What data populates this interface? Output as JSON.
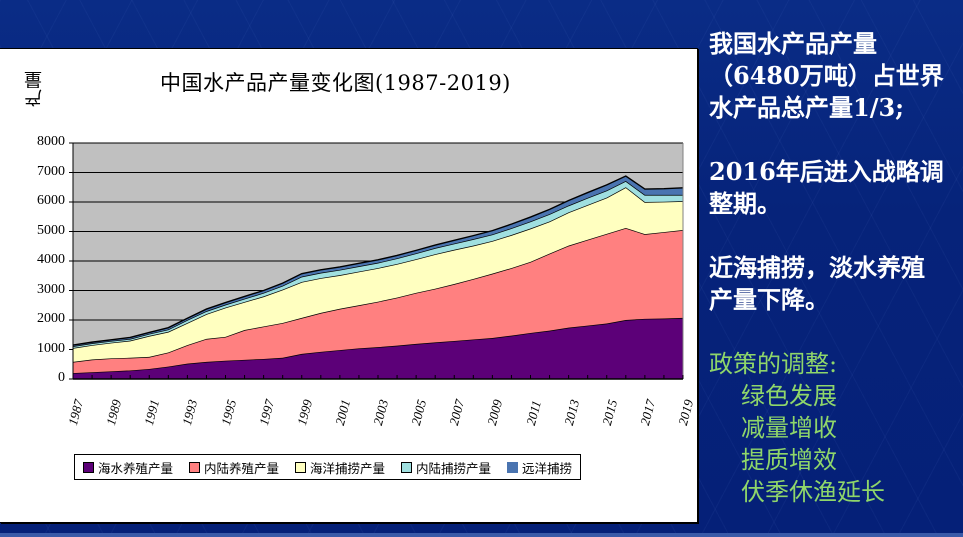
{
  "slide": {
    "side_panel": {
      "paragraph1": [
        "我国水产品产量",
        "（6480万吨）占世界",
        "水产品总产量1/3;"
      ],
      "paragraph2": [
        "2016年后进入战略调",
        "整期。"
      ],
      "paragraph3": [
        "近海捕捞，淡水养殖",
        "产量下降。"
      ],
      "policy_heading": "政策的调整:",
      "policy_items": [
        "绿色发展",
        "减量增收",
        "提质增效",
        "伏季休渔延长"
      ]
    }
  },
  "chart_data": {
    "type": "area",
    "stacked": true,
    "title": "中国水产品产量变化图(1987-2019)",
    "xlabel": "",
    "ylabel": "产量",
    "ylim": [
      0,
      8000
    ],
    "yticks": [
      0,
      1000,
      2000,
      3000,
      4000,
      5000,
      6000,
      7000,
      8000
    ],
    "x": [
      1987,
      1988,
      1989,
      1990,
      1991,
      1992,
      1993,
      1994,
      1995,
      1996,
      1997,
      1998,
      1999,
      2000,
      2001,
      2002,
      2003,
      2004,
      2005,
      2006,
      2007,
      2008,
      2009,
      2010,
      2011,
      2012,
      2013,
      2014,
      2015,
      2016,
      2017,
      2018,
      2019
    ],
    "xtick_labels": [
      "1987",
      "1989",
      "1991",
      "1993",
      "1995",
      "1997",
      "1999",
      "2001",
      "2003",
      "2005",
      "2007",
      "2009",
      "2011",
      "2013",
      "2015",
      "2017",
      "2019"
    ],
    "grid": true,
    "plot_background": "#c0c0c0",
    "legend_position": "bottom",
    "series": [
      {
        "name": "海水养殖产量",
        "color": "#5c0078",
        "values": [
          200,
          230,
          260,
          290,
          340,
          420,
          520,
          580,
          620,
          650,
          680,
          720,
          850,
          920,
          980,
          1040,
          1080,
          1130,
          1190,
          1240,
          1290,
          1340,
          1390,
          1470,
          1560,
          1640,
          1740,
          1810,
          1880,
          2000,
          2040,
          2050,
          2070
        ]
      },
      {
        "name": "内陆养殖产量",
        "color": "#ff8080",
        "values": [
          380,
          430,
          440,
          430,
          410,
          480,
          630,
          780,
          810,
          1010,
          1100,
          1180,
          1220,
          1320,
          1400,
          1460,
          1540,
          1630,
          1730,
          1820,
          1930,
          2050,
          2180,
          2290,
          2410,
          2610,
          2780,
          2910,
          3040,
          3120,
          2870,
          2930,
          2980
        ]
      },
      {
        "name": "海洋捕捞产量",
        "color": "#ffffc0",
        "values": [
          470,
          490,
          530,
          580,
          710,
          700,
          750,
          840,
          990,
          950,
          1020,
          1130,
          1220,
          1180,
          1140,
          1140,
          1140,
          1140,
          1140,
          1170,
          1160,
          1130,
          1110,
          1120,
          1130,
          1090,
          1130,
          1180,
          1230,
          1380,
          1090,
          1030,
          980
        ]
      },
      {
        "name": "内陆捕捞产量",
        "color": "#a0e0e0",
        "values": [
          60,
          60,
          60,
          60,
          70,
          80,
          100,
          100,
          100,
          110,
          120,
          130,
          180,
          180,
          180,
          180,
          180,
          190,
          200,
          210,
          210,
          220,
          220,
          230,
          240,
          250,
          230,
          240,
          240,
          210,
          240,
          230,
          210
        ]
      },
      {
        "name": "远洋捕捞",
        "color": "#4a74b0",
        "values": [
          40,
          40,
          40,
          50,
          50,
          60,
          60,
          70,
          70,
          80,
          80,
          90,
          100,
          100,
          100,
          100,
          100,
          100,
          100,
          100,
          110,
          120,
          130,
          140,
          150,
          160,
          170,
          180,
          190,
          170,
          200,
          210,
          240
        ]
      }
    ]
  }
}
